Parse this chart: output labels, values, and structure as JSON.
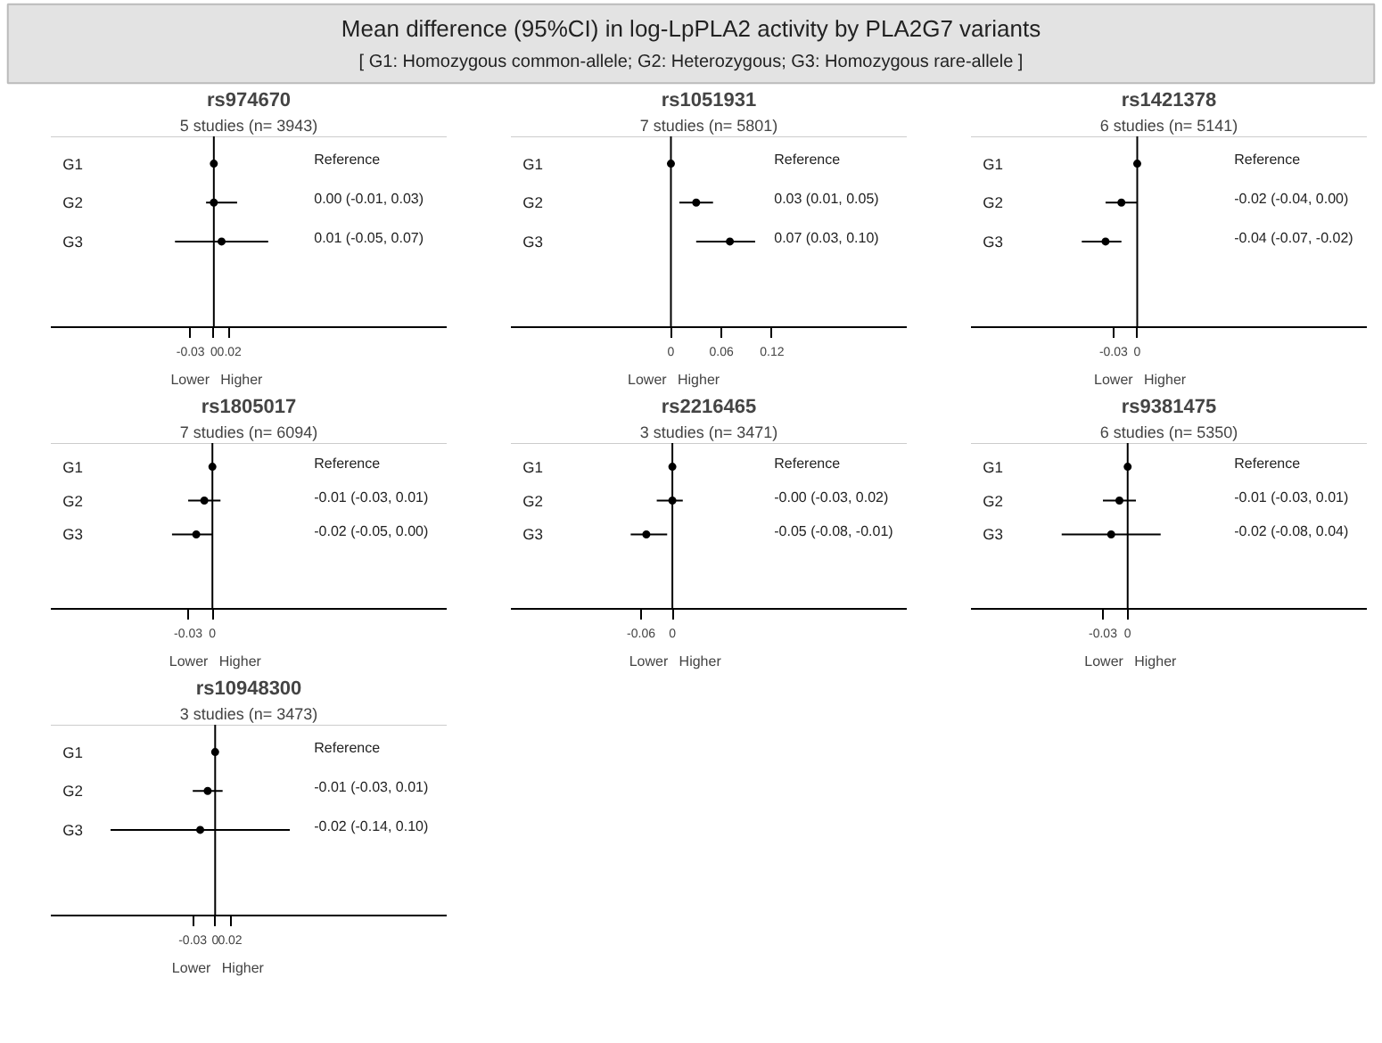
{
  "chart_data": [
    {
      "type": "other",
      "title": "Mean difference (95%CI) in log-LpPLA2 activity by PLA2G7 variants",
      "subtitle": "[ G1: Homozygous common-allele; G2: Heterozygous; G3: Homozygous rare-allele ]"
    },
    {
      "type": "scatter",
      "orientation": "horizontal",
      "title": "rs974670",
      "subtitle": "5 studies (n= 3943)",
      "categories": [
        "G1",
        "G2",
        "G3"
      ],
      "values": [
        0,
        0.0,
        0.01
      ],
      "errors": [
        null,
        [
          -0.01,
          0.03
        ],
        [
          -0.05,
          0.07
        ]
      ],
      "color": "#000000",
      "marker": "circle",
      "xlim": [
        -0.21,
        0.3
      ],
      "xticks": [
        -0.03,
        0,
        0.02
      ],
      "ref_lines": [
        {
          "axis": "x",
          "value": 0
        }
      ],
      "annotations": [
        "Reference",
        "0.00 (-0.01, 0.03)",
        "0.01 (-0.05, 0.07)",
        "Lower",
        "Higher"
      ]
    },
    {
      "type": "scatter",
      "orientation": "horizontal",
      "title": "rs1051931",
      "subtitle": "7 studies (n= 5801)",
      "categories": [
        "G1",
        "G2",
        "G3"
      ],
      "values": [
        0,
        0.03,
        0.07
      ],
      "errors": [
        null,
        [
          0.01,
          0.05
        ],
        [
          0.03,
          0.1
        ]
      ],
      "color": "#000000",
      "marker": "circle",
      "xlim": [
        -0.19,
        0.28
      ],
      "xticks": [
        0,
        0.06,
        0.12
      ],
      "ref_lines": [
        {
          "axis": "x",
          "value": 0
        }
      ],
      "annotations": [
        "Reference",
        "0.03 (0.01, 0.05)",
        "0.07 (0.03, 0.10)",
        "Lower",
        "Higher"
      ]
    },
    {
      "type": "scatter",
      "orientation": "horizontal",
      "title": "rs1421378",
      "subtitle": "6 studies (n= 5141)",
      "categories": [
        "G1",
        "G2",
        "G3"
      ],
      "values": [
        0,
        -0.02,
        -0.04
      ],
      "errors": [
        null,
        [
          -0.04,
          0.0
        ],
        [
          -0.07,
          -0.02
        ]
      ],
      "color": "#000000",
      "marker": "circle",
      "xlim": [
        -0.21,
        0.29
      ],
      "xticks": [
        -0.03,
        0
      ],
      "ref_lines": [
        {
          "axis": "x",
          "value": 0
        }
      ],
      "annotations": [
        "Reference",
        "-0.02 (-0.04, 0.00)",
        "-0.04 (-0.07, -0.02)",
        "Lower",
        "Higher"
      ]
    },
    {
      "type": "scatter",
      "orientation": "horizontal",
      "title": "rs1805017",
      "subtitle": "7 studies (n= 6094)",
      "categories": [
        "G1",
        "G2",
        "G3"
      ],
      "values": [
        0,
        -0.01,
        -0.02
      ],
      "errors": [
        null,
        [
          -0.03,
          0.01
        ],
        [
          -0.05,
          0.0
        ]
      ],
      "color": "#000000",
      "marker": "circle",
      "xlim": [
        -0.2,
        0.29
      ],
      "xticks": [
        -0.03,
        0
      ],
      "ref_lines": [
        {
          "axis": "x",
          "value": 0
        }
      ],
      "annotations": [
        "Reference",
        "-0.01 (-0.03, 0.01)",
        "-0.02 (-0.05, 0.00)",
        "Lower",
        "Higher"
      ]
    },
    {
      "type": "scatter",
      "orientation": "horizontal",
      "title": "rs2216465",
      "subtitle": "3 studies (n= 3471)",
      "categories": [
        "G1",
        "G2",
        "G3"
      ],
      "values": [
        0,
        -0.0,
        -0.05
      ],
      "errors": [
        null,
        [
          -0.03,
          0.02
        ],
        [
          -0.08,
          -0.01
        ]
      ],
      "color": "#000000",
      "marker": "circle",
      "xlim": [
        -0.31,
        0.45
      ],
      "xticks": [
        -0.06,
        0
      ],
      "ref_lines": [
        {
          "axis": "x",
          "value": 0
        }
      ],
      "annotations": [
        "Reference",
        "-0.00 (-0.03, 0.02)",
        "-0.05 (-0.08, -0.01)",
        "Lower",
        "Higher"
      ]
    },
    {
      "type": "scatter",
      "orientation": "horizontal",
      "title": "rs9381475",
      "subtitle": "6 studies (n= 5350)",
      "categories": [
        "G1",
        "G2",
        "G3"
      ],
      "values": [
        0,
        -0.01,
        -0.02
      ],
      "errors": [
        null,
        [
          -0.03,
          0.01
        ],
        [
          -0.08,
          0.04
        ]
      ],
      "color": "#000000",
      "marker": "circle",
      "xlim": [
        -0.19,
        0.29
      ],
      "xticks": [
        -0.03,
        0
      ],
      "ref_lines": [
        {
          "axis": "x",
          "value": 0
        }
      ],
      "annotations": [
        "Reference",
        "-0.01 (-0.03, 0.01)",
        "-0.02 (-0.08, 0.04)",
        "Lower",
        "Higher"
      ]
    },
    {
      "type": "scatter",
      "orientation": "horizontal",
      "title": "rs10948300",
      "subtitle": "3 studies (n= 3473)",
      "categories": [
        "G1",
        "G2",
        "G3"
      ],
      "values": [
        0,
        -0.01,
        -0.02
      ],
      "errors": [
        null,
        [
          -0.03,
          0.01
        ],
        [
          -0.14,
          0.1
        ]
      ],
      "color": "#000000",
      "marker": "circle",
      "xlim": [
        -0.22,
        0.31
      ],
      "xticks": [
        -0.03,
        0,
        0.02
      ],
      "ref_lines": [
        {
          "axis": "x",
          "value": 0
        }
      ],
      "annotations": [
        "Reference",
        "-0.01 (-0.03, 0.01)",
        "-0.02 (-0.14, 0.10)",
        "Lower",
        "Higher"
      ]
    }
  ]
}
